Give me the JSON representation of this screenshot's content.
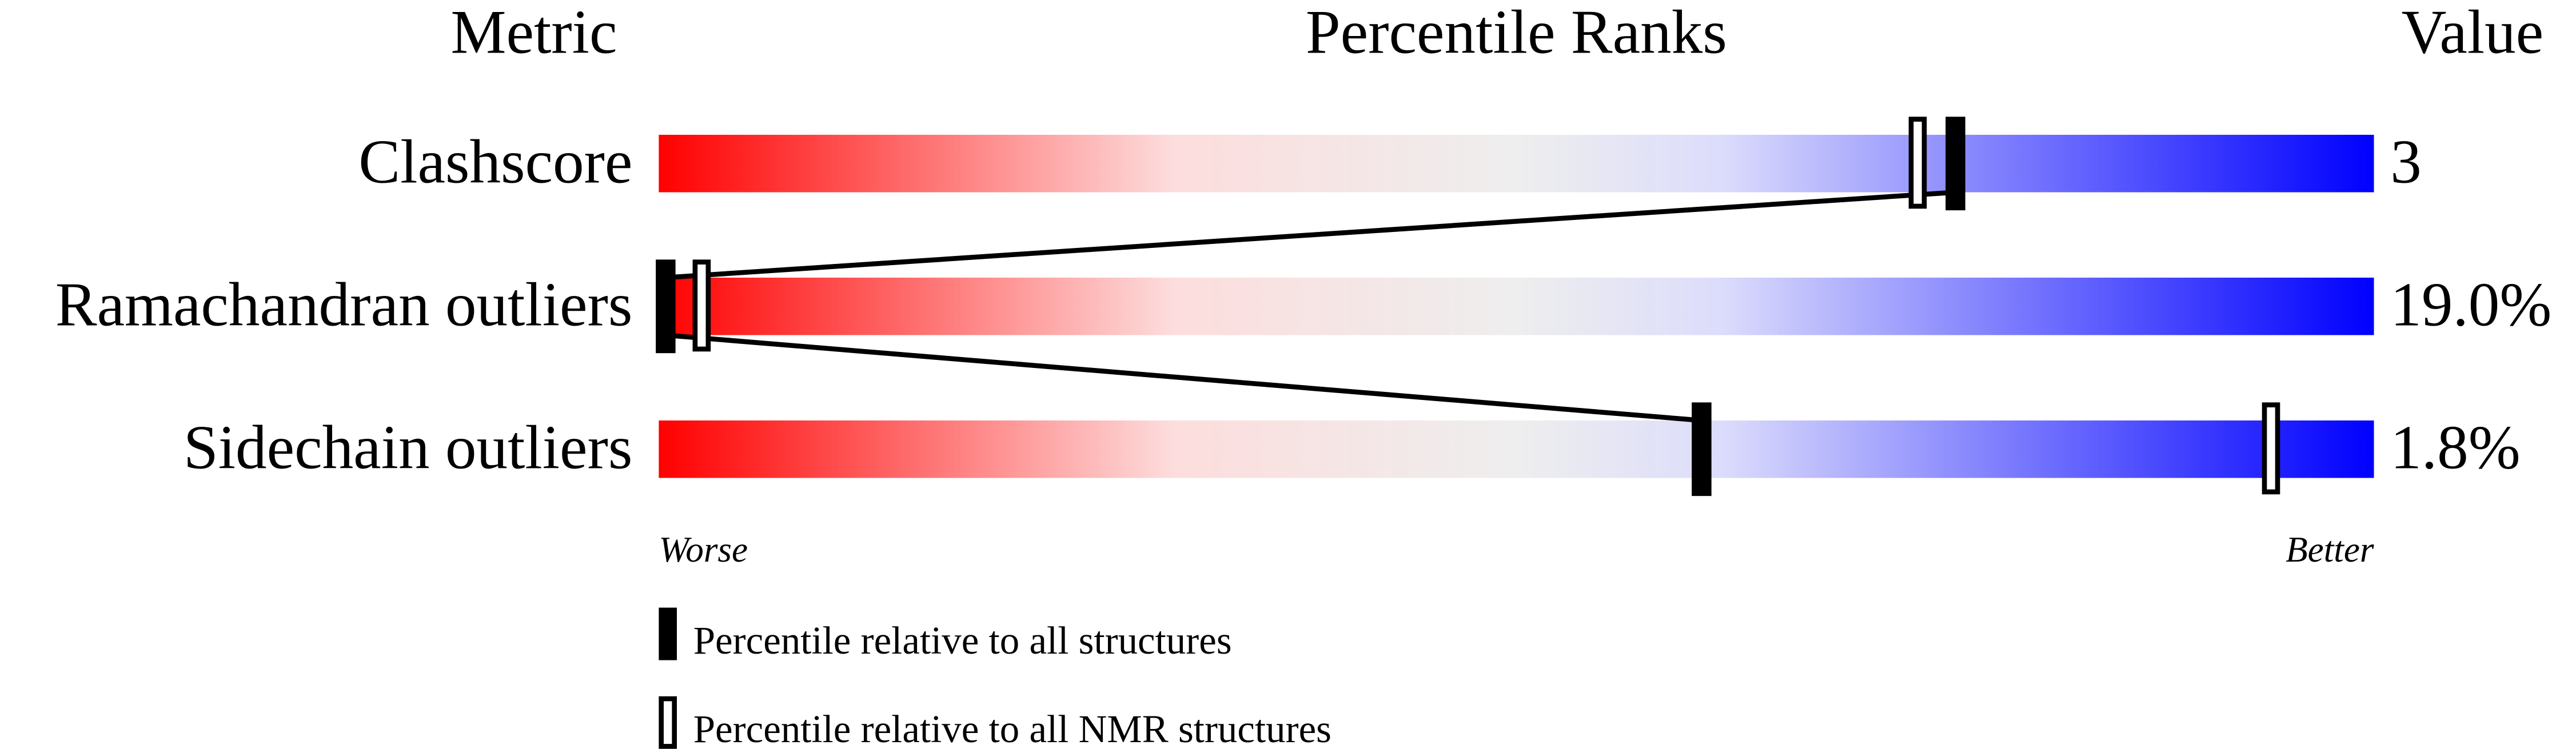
{
  "chart_data": {
    "type": "bar",
    "headers": {
      "metric": "Metric",
      "ranks": "Percentile Ranks",
      "value": "Value"
    },
    "xlim": [
      0,
      100
    ],
    "scale_labels": {
      "left": "Worse",
      "right": "Better"
    },
    "gradient_colors": [
      "#ff0000",
      "#fddddd",
      "#eeeeee",
      "#dcdcfc",
      "#0000ff"
    ],
    "metrics": [
      {
        "name": "Clashscore",
        "value": "3",
        "percentile_all": 75.6,
        "percentile_nmr": 73.4
      },
      {
        "name": "Ramachandran outliers",
        "value": "19.0%",
        "percentile_all": 0.4,
        "percentile_nmr": 2.5
      },
      {
        "name": "Sidechain outliers",
        "value": "1.8%",
        "percentile_all": 60.8,
        "percentile_nmr": 94.0
      }
    ],
    "legend": [
      {
        "marker": "filled",
        "label": "Percentile relative to all structures"
      },
      {
        "marker": "outline",
        "label": "Percentile relative to all NMR structures"
      }
    ]
  }
}
